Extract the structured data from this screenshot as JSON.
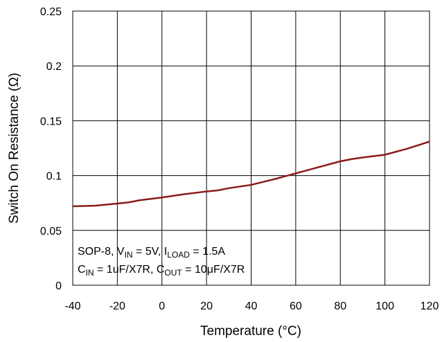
{
  "chart_data": {
    "type": "line",
    "title": "",
    "xlabel": "Temperature (°C)",
    "ylabel": "Switch On Resistance (Ω)",
    "xlim": [
      -40,
      120
    ],
    "ylim": [
      0,
      0.25
    ],
    "xticks": [
      -40,
      -20,
      0,
      20,
      40,
      60,
      80,
      100,
      120
    ],
    "yticks": [
      0,
      0.05,
      0.1,
      0.15,
      0.2,
      0.25
    ],
    "xtick_labels": [
      "-40",
      "-20",
      "0",
      "20",
      "40",
      "60",
      "80",
      "100",
      "120"
    ],
    "ytick_labels": [
      "0",
      "0.05",
      "0.1",
      "0.15",
      "0.2",
      "0.25"
    ],
    "grid": true,
    "series": [
      {
        "color": "#8b1a1a",
        "x": [
          -40,
          -30,
          -20,
          -15,
          -10,
          0,
          5,
          10,
          20,
          25,
          30,
          40,
          50,
          60,
          70,
          80,
          85,
          90,
          100,
          110,
          120
        ],
        "y": [
          0.072,
          0.0725,
          0.0745,
          0.0755,
          0.0775,
          0.08,
          0.0815,
          0.083,
          0.0855,
          0.0865,
          0.0885,
          0.0915,
          0.0965,
          0.102,
          0.1075,
          0.113,
          0.115,
          0.1165,
          0.119,
          0.1245,
          0.131
        ]
      }
    ],
    "annotation": {
      "line1": [
        "SOP-8, V",
        "IN",
        " = 5V, I",
        "LOAD",
        " = 1.5A"
      ],
      "line2": [
        "C",
        "IN",
        " = 1uF/X7R, C",
        "OUT",
        " = 10μF/X7R"
      ]
    }
  }
}
